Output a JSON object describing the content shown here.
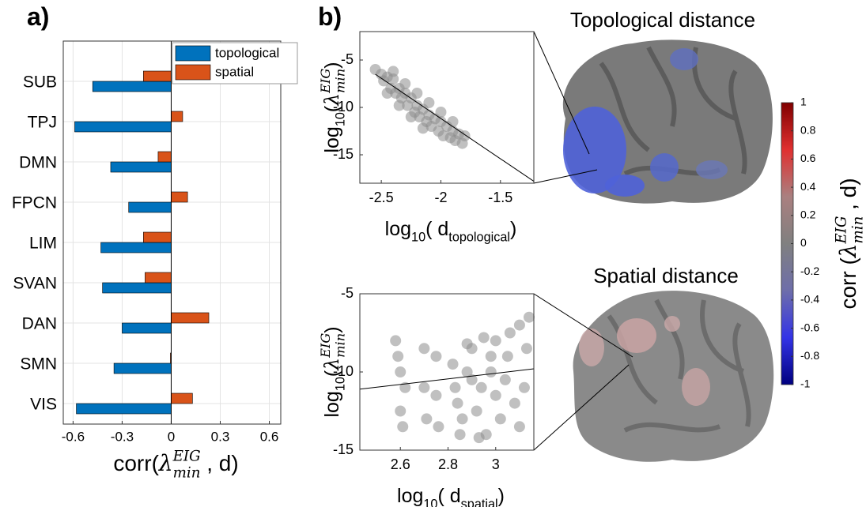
{
  "chart_data": [
    {
      "type": "hbar",
      "panel": "a)",
      "categories": [
        "SUB",
        "TPJ",
        "DMN",
        "FPCN",
        "LIM",
        "SVAN",
        "DAN",
        "SMN",
        "VIS"
      ],
      "series": [
        {
          "name": "topological",
          "color": "#0072bd",
          "values": [
            -0.48,
            -0.59,
            -0.37,
            -0.26,
            -0.43,
            -0.42,
            -0.3,
            -0.35,
            -0.58
          ]
        },
        {
          "name": "spatial",
          "color": "#d95319",
          "values": [
            -0.17,
            0.07,
            -0.08,
            0.1,
            -0.17,
            -0.16,
            0.23,
            -0.005,
            0.13
          ]
        }
      ],
      "xlim": [
        -0.66,
        0.67
      ],
      "xticks": [
        -0.6,
        -0.3,
        0,
        0.3,
        0.6
      ],
      "grid": true,
      "legend": "upper right",
      "xlabel": [
        "corr(",
        "λ",
        "EIG",
        "min",
        " , d)"
      ],
      "xlabel_script": [
        "",
        "italic",
        "sup",
        "sub",
        ""
      ]
    },
    {
      "type": "scatter",
      "panel": "b)",
      "title": "Topological distance",
      "color": "#8c8c8c",
      "x": [
        -2.55,
        -2.5,
        -2.48,
        -2.45,
        -2.42,
        -2.4,
        -2.38,
        -2.35,
        -2.33,
        -2.3,
        -2.28,
        -2.25,
        -2.22,
        -2.2,
        -2.18,
        -2.15,
        -2.12,
        -2.1,
        -2.08,
        -2.05,
        -2.02,
        -2,
        -1.98,
        -1.95,
        -1.92,
        -1.9,
        -1.88,
        -1.85,
        -1.82,
        -1.8,
        -2.4,
        -2.3,
        -2.2,
        -2.1,
        -2,
        -1.9,
        -2.45,
        -2.35,
        -2.25,
        -2.15
      ],
      "y": [
        -6,
        -6.5,
        -7.2,
        -6.8,
        -8,
        -7,
        -8.5,
        -8,
        -9,
        -8.5,
        -9.8,
        -9,
        -10.5,
        -9.8,
        -11,
        -10.2,
        -11.5,
        -10.8,
        -12,
        -11.2,
        -12.5,
        -11.5,
        -13,
        -12,
        -13.2,
        -12.5,
        -13.5,
        -12.8,
        -13.8,
        -13,
        -6.2,
        -7.5,
        -8.5,
        -9.5,
        -10.5,
        -11.5,
        -8.5,
        -9.8,
        -11,
        -12.2
      ],
      "fit": {
        "x": [
          -2.55,
          -1.22
        ],
        "y": [
          -6.5,
          -17.8
        ]
      },
      "xlim": [
        -2.68,
        -1.22
      ],
      "ylim": [
        -18,
        -2
      ],
      "xticks": [
        -2.5,
        -2,
        -1.5
      ],
      "yticks": [
        -5,
        -10,
        -15
      ],
      "xlabel": [
        "log",
        "10",
        "( d",
        "topological",
        ")"
      ],
      "xlabel_script": [
        "",
        "sub",
        "",
        "sub",
        ""
      ],
      "ylabel": [
        "log",
        "10",
        "(",
        "λ",
        "EIG",
        "min",
        ")"
      ],
      "ylabel_script": [
        "",
        "sub",
        "",
        "italic",
        "sup",
        "sub",
        ""
      ]
    },
    {
      "type": "scatter",
      "title": "Spatial distance",
      "color": "#8c8c8c",
      "x": [
        2.58,
        2.6,
        2.6,
        2.62,
        2.61,
        2.59,
        2.7,
        2.7,
        2.71,
        2.75,
        2.75,
        2.76,
        2.82,
        2.84,
        2.86,
        2.88,
        2.9,
        2.92,
        2.94,
        2.96,
        2.98,
        3,
        3.02,
        3.04,
        3.06,
        3.08,
        3.1,
        3.12,
        3.14,
        2.85,
        2.9,
        2.95,
        3,
        3.05,
        3.1,
        3.13,
        2.83,
        2.88,
        2.93,
        2.98
      ],
      "y": [
        -8,
        -10,
        -12.5,
        -11,
        -13.5,
        -9,
        -8.5,
        -11,
        -13,
        -9,
        -11.5,
        -13.5,
        -9.5,
        -12,
        -13,
        -10,
        -8.5,
        -12.5,
        -11,
        -14,
        -9,
        -8,
        -13,
        -10.5,
        -7.5,
        -12,
        -7,
        -11,
        -6.5,
        -14,
        -10.5,
        -7.8,
        -11.5,
        -9,
        -13.5,
        -8.5,
        -11,
        -8.2,
        -14.2,
        -10
      ],
      "fit": {
        "x": [
          2.43,
          3.16
        ],
        "y": [
          -11.1,
          -9.8
        ]
      },
      "xlim": [
        2.43,
        3.16
      ],
      "ylim": [
        -15,
        -5
      ],
      "xticks": [
        2.6,
        2.8,
        3
      ],
      "yticks": [
        -5,
        -10,
        -15
      ],
      "xlabel": [
        "log",
        "10",
        "( d",
        "spatial",
        ")"
      ],
      "xlabel_script": [
        "",
        "sub",
        "",
        "sub",
        ""
      ],
      "ylabel": [
        "log",
        "10",
        "(",
        "λ",
        "EIG",
        "min",
        ")"
      ],
      "ylabel_script": [
        "",
        "sub",
        "",
        "italic",
        "sup",
        "sub",
        ""
      ]
    },
    {
      "type": "colorbar",
      "colors": [
        "#000080",
        "#3333e6",
        "#6e6eaa",
        "#808080",
        "#aa8080",
        "#e03030",
        "#800000"
      ],
      "ylim": [
        -1,
        1
      ],
      "yticks": [
        1,
        0.8,
        0.6,
        0.4,
        0.2,
        0,
        -0.2,
        -0.4,
        -0.6,
        -0.8,
        -1
      ],
      "ylabel": [
        "corr (",
        "λ",
        "EIG",
        "min",
        " , d)"
      ],
      "ylabel_script": [
        "",
        "italic",
        "sup",
        "sub",
        ""
      ]
    }
  ]
}
